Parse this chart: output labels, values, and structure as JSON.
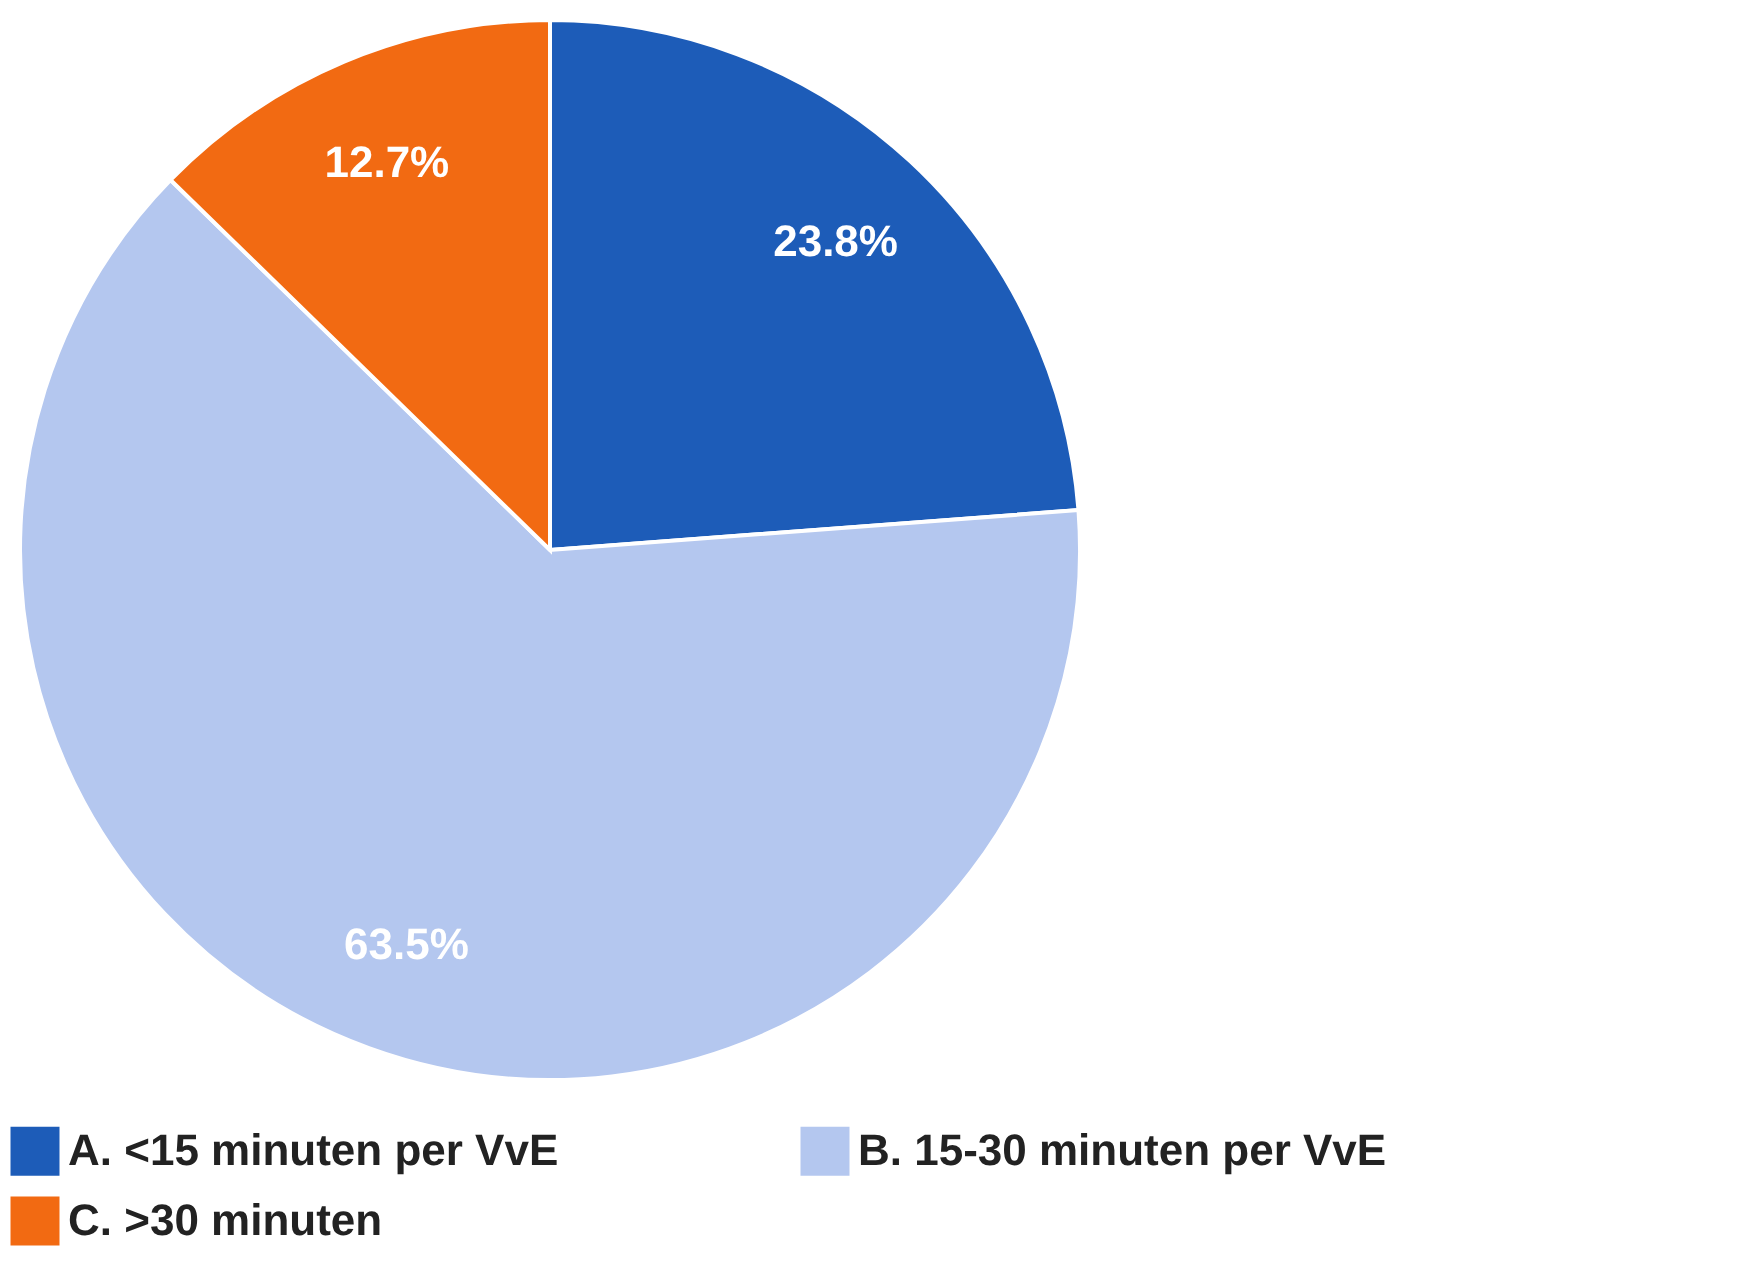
{
  "chart_data": {
    "type": "pie",
    "categories": [
      "A. <15 minuten per VvE",
      "B. 15-30 minuten per VvE",
      "C. >30 minuten"
    ],
    "values": [
      23.8,
      63.5,
      12.7
    ],
    "colors": [
      "#1d5cb8",
      "#b4c7ef",
      "#f26a12"
    ],
    "value_labels": [
      "23.8%",
      "63.5%",
      "12.7%"
    ],
    "legend": "bottom"
  }
}
